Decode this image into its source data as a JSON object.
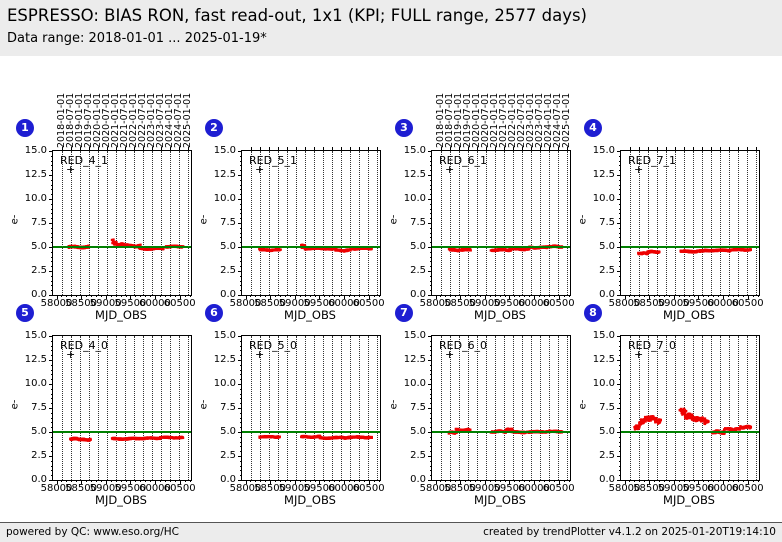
{
  "header": {
    "title": "ESPRESSO: BIAS RON, fast read-out, 1x1 (KPI; FULL range, 2577 days)",
    "subtitle": "Data range: 2018-01-01 ... 2025-01-19*"
  },
  "footer": {
    "left": "powered by QC: www.eso.org/HC",
    "right": "created by trendPlotter v4.1.2 on 2025-01-20T19:14:10"
  },
  "colors": {
    "badge_blue": "#1e1ed2",
    "point_red": "#ee0000",
    "ref_green": "#008000",
    "band_gray": "#ececec"
  },
  "axes": {
    "xlabel": "MJD_OBS",
    "ylabel": "e-",
    "ylim": [
      0.0,
      15.0
    ],
    "yticks": [
      0.0,
      2.5,
      5.0,
      7.5,
      10.0,
      12.5,
      15.0
    ],
    "xlim": [
      57930,
      60730
    ],
    "xticks": [
      58000,
      58500,
      59000,
      59500,
      60000,
      60500
    ],
    "x_minor_step": 100,
    "y_minor_step": 0.5,
    "ref_line_y": 5.0,
    "grid": "vertical-dotted-at-dates",
    "date_ticks": [
      {
        "label": "2018-01-01",
        "mjd": 58119
      },
      {
        "label": "2018-07-01",
        "mjd": 58300
      },
      {
        "label": "2019-01-01",
        "mjd": 58484
      },
      {
        "label": "2019-07-01",
        "mjd": 58665
      },
      {
        "label": "2020-01-01",
        "mjd": 58849
      },
      {
        "label": "2020-07-01",
        "mjd": 59031
      },
      {
        "label": "2021-01-01",
        "mjd": 59215
      },
      {
        "label": "2021-07-01",
        "mjd": 59396
      },
      {
        "label": "2022-01-01",
        "mjd": 59580
      },
      {
        "label": "2022-07-01",
        "mjd": 59761
      },
      {
        "label": "2023-01-01",
        "mjd": 59945
      },
      {
        "label": "2023-07-01",
        "mjd": 60126
      },
      {
        "label": "2024-01-01",
        "mjd": 60310
      },
      {
        "label": "2024-07-01",
        "mjd": 60492
      },
      {
        "label": "2025-01-01",
        "mjd": 60676
      }
    ]
  },
  "chart_data": [
    {
      "type": "scatter",
      "badge": "1",
      "label": "RED_4_1",
      "marker": "+",
      "show_dates": true,
      "x_field": "MJD_OBS",
      "y_field": "e-",
      "ref_line": 5.0,
      "segments": [
        [
          58250,
          58660,
          5.0,
          0.1
        ],
        [
          59140,
          59230,
          5.55,
          0.18,
          5.3
        ],
        [
          59230,
          59420,
          5.25,
          0.13
        ],
        [
          59420,
          59690,
          5.1,
          0.11
        ],
        [
          59690,
          60160,
          4.85,
          0.1
        ],
        [
          60230,
          60560,
          5.05,
          0.08
        ]
      ]
    },
    {
      "type": "scatter",
      "badge": "2",
      "label": "RED_5_1",
      "marker": "+",
      "show_dates": false,
      "x_field": "MJD_OBS",
      "y_field": "e-",
      "ref_line": 5.0,
      "segments": [
        [
          58290,
          58700,
          4.7,
          0.08
        ],
        [
          59140,
          59210,
          5.15,
          0.15,
          4.95
        ],
        [
          59210,
          59840,
          4.85,
          0.09
        ],
        [
          59840,
          60120,
          4.65,
          0.09
        ],
        [
          60120,
          60560,
          4.85,
          0.08
        ]
      ]
    },
    {
      "type": "scatter",
      "badge": "3",
      "label": "RED_6_1",
      "marker": "+",
      "show_dates": true,
      "x_field": "MJD_OBS",
      "y_field": "e-",
      "ref_line": 5.0,
      "segments": [
        [
          58290,
          58700,
          4.7,
          0.09
        ],
        [
          59140,
          59520,
          4.7,
          0.09
        ],
        [
          59520,
          59900,
          4.8,
          0.09
        ],
        [
          59900,
          60250,
          4.95,
          0.08
        ],
        [
          60250,
          60560,
          5.05,
          0.08
        ]
      ]
    },
    {
      "type": "scatter",
      "badge": "4",
      "label": "RED_7_1",
      "marker": "+",
      "show_dates": false,
      "x_field": "MJD_OBS",
      "y_field": "e-",
      "ref_line": 5.0,
      "segments": [
        [
          58290,
          58460,
          4.35,
          0.08
        ],
        [
          58460,
          58700,
          4.5,
          0.08
        ],
        [
          59140,
          59620,
          4.55,
          0.09
        ],
        [
          59620,
          60150,
          4.65,
          0.08
        ],
        [
          60150,
          60560,
          4.72,
          0.08
        ]
      ]
    },
    {
      "type": "scatter",
      "badge": "5",
      "label": "RED_4_0",
      "marker": "+",
      "show_dates": false,
      "x_field": "MJD_OBS",
      "y_field": "e-",
      "ref_line": 5.0,
      "segments": [
        [
          58280,
          58470,
          4.3,
          0.08
        ],
        [
          58470,
          58700,
          4.2,
          0.08
        ],
        [
          59140,
          59680,
          4.3,
          0.08
        ],
        [
          59680,
          60100,
          4.35,
          0.07
        ],
        [
          60100,
          60560,
          4.42,
          0.07
        ]
      ]
    },
    {
      "type": "scatter",
      "badge": "6",
      "label": "RED_5_0",
      "marker": "+",
      "show_dates": false,
      "x_field": "MJD_OBS",
      "y_field": "e-",
      "ref_line": 5.0,
      "segments": [
        [
          58290,
          58700,
          4.5,
          0.08
        ],
        [
          59140,
          59520,
          4.5,
          0.08
        ],
        [
          59520,
          60060,
          4.4,
          0.08
        ],
        [
          60060,
          60560,
          4.45,
          0.08
        ]
      ]
    },
    {
      "type": "scatter",
      "badge": "7",
      "label": "RED_6_0",
      "marker": "+",
      "show_dates": false,
      "x_field": "MJD_OBS",
      "y_field": "e-",
      "ref_line": 5.0,
      "segments": [
        [
          58280,
          58420,
          4.95,
          0.1
        ],
        [
          58420,
          58700,
          5.2,
          0.1
        ],
        [
          59140,
          59440,
          5.05,
          0.09
        ],
        [
          59440,
          59540,
          5.25,
          0.1
        ],
        [
          59540,
          60160,
          5.0,
          0.08
        ],
        [
          60160,
          60560,
          5.05,
          0.08
        ]
      ]
    },
    {
      "type": "scatter",
      "badge": "8",
      "label": "RED_7_0",
      "marker": "+",
      "show_dates": false,
      "x_field": "MJD_OBS",
      "y_field": "e-",
      "ref_line": 5.0,
      "segments": [
        [
          58220,
          58340,
          5.3,
          0.2,
          5.9
        ],
        [
          58340,
          58520,
          6.15,
          0.25,
          6.4
        ],
        [
          58520,
          58660,
          6.5,
          0.25,
          6.3
        ],
        [
          58660,
          58730,
          6.1,
          0.18
        ],
        [
          59140,
          59250,
          7.35,
          0.3,
          6.9
        ],
        [
          59250,
          59460,
          6.7,
          0.25,
          6.4
        ],
        [
          59460,
          59620,
          6.35,
          0.22
        ],
        [
          59620,
          59700,
          6.1,
          0.2
        ],
        [
          59790,
          60040,
          5.0,
          0.15
        ],
        [
          60040,
          60350,
          5.3,
          0.1
        ],
        [
          60350,
          60560,
          5.5,
          0.1
        ]
      ]
    }
  ],
  "layout": {
    "panel_lefts": [
      52,
      241,
      431,
      620
    ],
    "panel_tops": [
      150,
      335
    ]
  }
}
